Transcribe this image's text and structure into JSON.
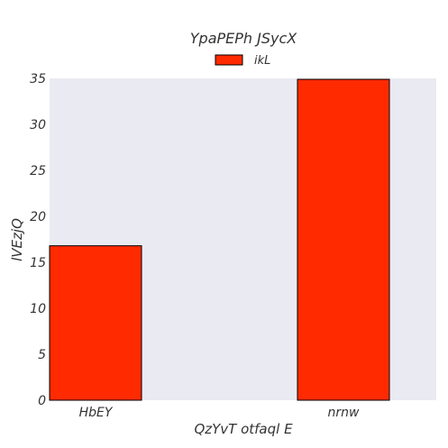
{
  "chart_data": {
    "type": "bar",
    "title": "YpaPEPh JSycX",
    "xlabel": "QzYvT otfaql E",
    "ylabel": "lVEzjQ",
    "categories": [
      "HbEY",
      "nrnw"
    ],
    "series": [
      {
        "name": "ikL",
        "values": [
          16.8,
          34.9
        ]
      }
    ],
    "ylim": [
      0,
      35
    ],
    "yticks": [
      0,
      5,
      10,
      15,
      20,
      25,
      30,
      35
    ],
    "grid": false,
    "legend": "top-center",
    "colors": {
      "bar": "#ff2a00",
      "bar_edge": "#000000",
      "plot_bg": "#eaeaf2",
      "text": "#333333"
    }
  }
}
